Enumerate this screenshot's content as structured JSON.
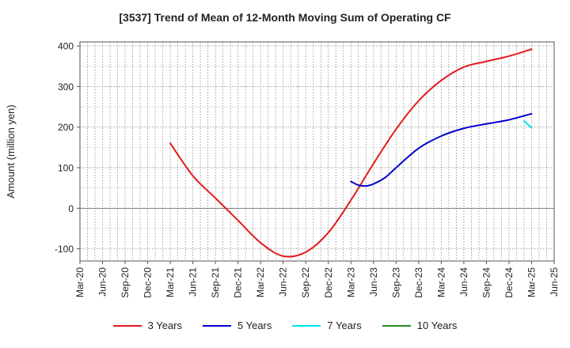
{
  "chart_data": {
    "type": "line",
    "title": "[3537]  Trend of Mean of 12-Month Moving Sum of Operating CF",
    "xlabel": "",
    "ylabel": "Amount (million yen)",
    "ylim": [
      -130,
      410
    ],
    "yticks": [
      -100,
      0,
      100,
      200,
      300,
      400
    ],
    "xticks": [
      "Mar-20",
      "Jun-20",
      "Sep-20",
      "Dec-20",
      "Mar-21",
      "Jun-21",
      "Sep-21",
      "Dec-21",
      "Mar-22",
      "Jun-22",
      "Sep-22",
      "Dec-22",
      "Mar-23",
      "Jun-23",
      "Sep-23",
      "Dec-23",
      "Mar-24",
      "Jun-24",
      "Sep-24",
      "Dec-24",
      "Mar-25",
      "Jun-25"
    ],
    "grid": true,
    "legend_position": "bottom",
    "series": [
      {
        "name": "3 Years",
        "color": "#e31a1c",
        "x": [
          4,
          5,
          6,
          7,
          8,
          9,
          10,
          11,
          12,
          13,
          14,
          15,
          16,
          17,
          18,
          19,
          20
        ],
        "values": [
          160,
          80,
          25,
          -30,
          -85,
          -118,
          -108,
          -60,
          20,
          110,
          195,
          265,
          315,
          348,
          362,
          375,
          392
        ]
      },
      {
        "name": "5 Years",
        "color": "#0000cc",
        "x": [
          12,
          12.33,
          12.67,
          13,
          13.5,
          14,
          15,
          16,
          17,
          18,
          19,
          20
        ],
        "values": [
          66,
          57,
          55,
          60,
          75,
          100,
          148,
          178,
          197,
          208,
          218,
          233
        ]
      },
      {
        "name": "7 Years",
        "color": "#00e5ee",
        "x": [
          19.67,
          20
        ],
        "values": [
          215,
          198
        ]
      },
      {
        "name": "10 Years",
        "color": "#228b22",
        "x": [],
        "values": []
      }
    ]
  }
}
